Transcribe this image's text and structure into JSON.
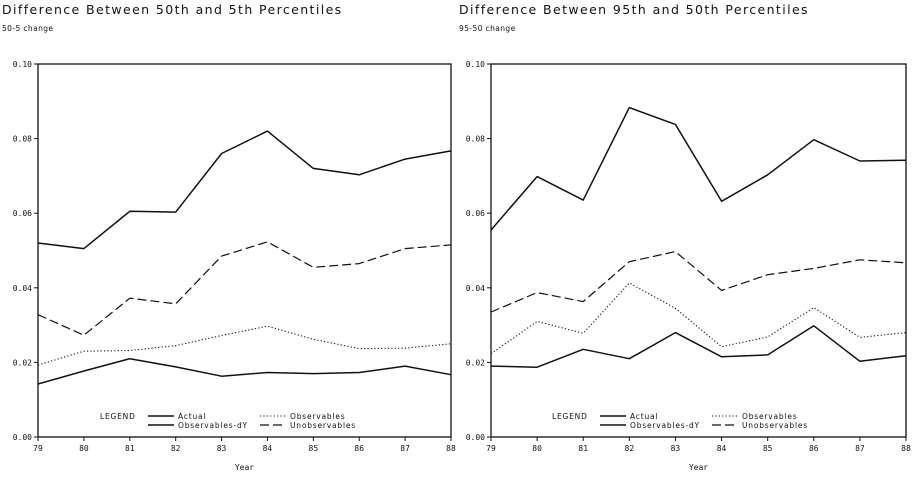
{
  "chart_data": [
    {
      "type": "line",
      "title": "Difference Between 50th and 5th Percentiles",
      "subtitle": "50-5 change",
      "xlabel": "Year",
      "ylabel": "",
      "x": [
        "79",
        "80",
        "81",
        "82",
        "83",
        "84",
        "85",
        "86",
        "87",
        "88"
      ],
      "y_ticks": [
        "0.00",
        "0.02",
        "0.04",
        "0.06",
        "0.08",
        "0.10"
      ],
      "ylim": [
        0,
        0.1
      ],
      "legend": {
        "title": "LEGEND",
        "placement": "bottom-center"
      },
      "series": [
        {
          "name": "Actual",
          "style": "solid",
          "values": [
            0.052,
            0.0505,
            0.0605,
            0.0603,
            0.076,
            0.082,
            0.072,
            0.0703,
            0.0745,
            0.0767
          ]
        },
        {
          "name": "Observables",
          "style": "dotted",
          "values": [
            0.0193,
            0.023,
            0.0232,
            0.0245,
            0.0272,
            0.0297,
            0.0262,
            0.0237,
            0.0238,
            0.025
          ]
        },
        {
          "name": "Observables-dY",
          "style": "solid",
          "values": [
            0.0142,
            0.0177,
            0.021,
            0.0188,
            0.0163,
            0.0173,
            0.017,
            0.0173,
            0.019,
            0.0167
          ]
        },
        {
          "name": "Unobservables",
          "style": "dashed",
          "values": [
            0.0328,
            0.0273,
            0.0372,
            0.0357,
            0.0485,
            0.0523,
            0.0455,
            0.0465,
            0.0505,
            0.0515
          ]
        }
      ]
    },
    {
      "type": "line",
      "title": "Difference Between 95th and 50th Percentiles",
      "subtitle": "95-50 change",
      "xlabel": "Year",
      "ylabel": "",
      "x": [
        "79",
        "80",
        "81",
        "82",
        "83",
        "84",
        "85",
        "86",
        "87",
        "88"
      ],
      "y_ticks": [
        "0.00",
        "0.02",
        "0.04",
        "0.06",
        "0.08",
        "0.10"
      ],
      "ylim": [
        0,
        0.1
      ],
      "legend": {
        "title": "LEGEND",
        "placement": "bottom-center"
      },
      "series": [
        {
          "name": "Actual",
          "style": "solid",
          "values": [
            0.0555,
            0.0698,
            0.0635,
            0.0883,
            0.0838,
            0.0632,
            0.0703,
            0.0797,
            0.074,
            0.0742
          ]
        },
        {
          "name": "Observables",
          "style": "dotted",
          "values": [
            0.0223,
            0.031,
            0.0278,
            0.0413,
            0.0345,
            0.0242,
            0.0268,
            0.0347,
            0.0267,
            0.028
          ]
        },
        {
          "name": "Observables-dY",
          "style": "solid",
          "values": [
            0.019,
            0.0187,
            0.0235,
            0.021,
            0.028,
            0.0215,
            0.022,
            0.0298,
            0.0203,
            0.0218
          ]
        },
        {
          "name": "Unobservables",
          "style": "dashed",
          "values": [
            0.0335,
            0.0387,
            0.0363,
            0.047,
            0.0497,
            0.0393,
            0.0435,
            0.0452,
            0.0475,
            0.0467
          ]
        }
      ]
    }
  ]
}
